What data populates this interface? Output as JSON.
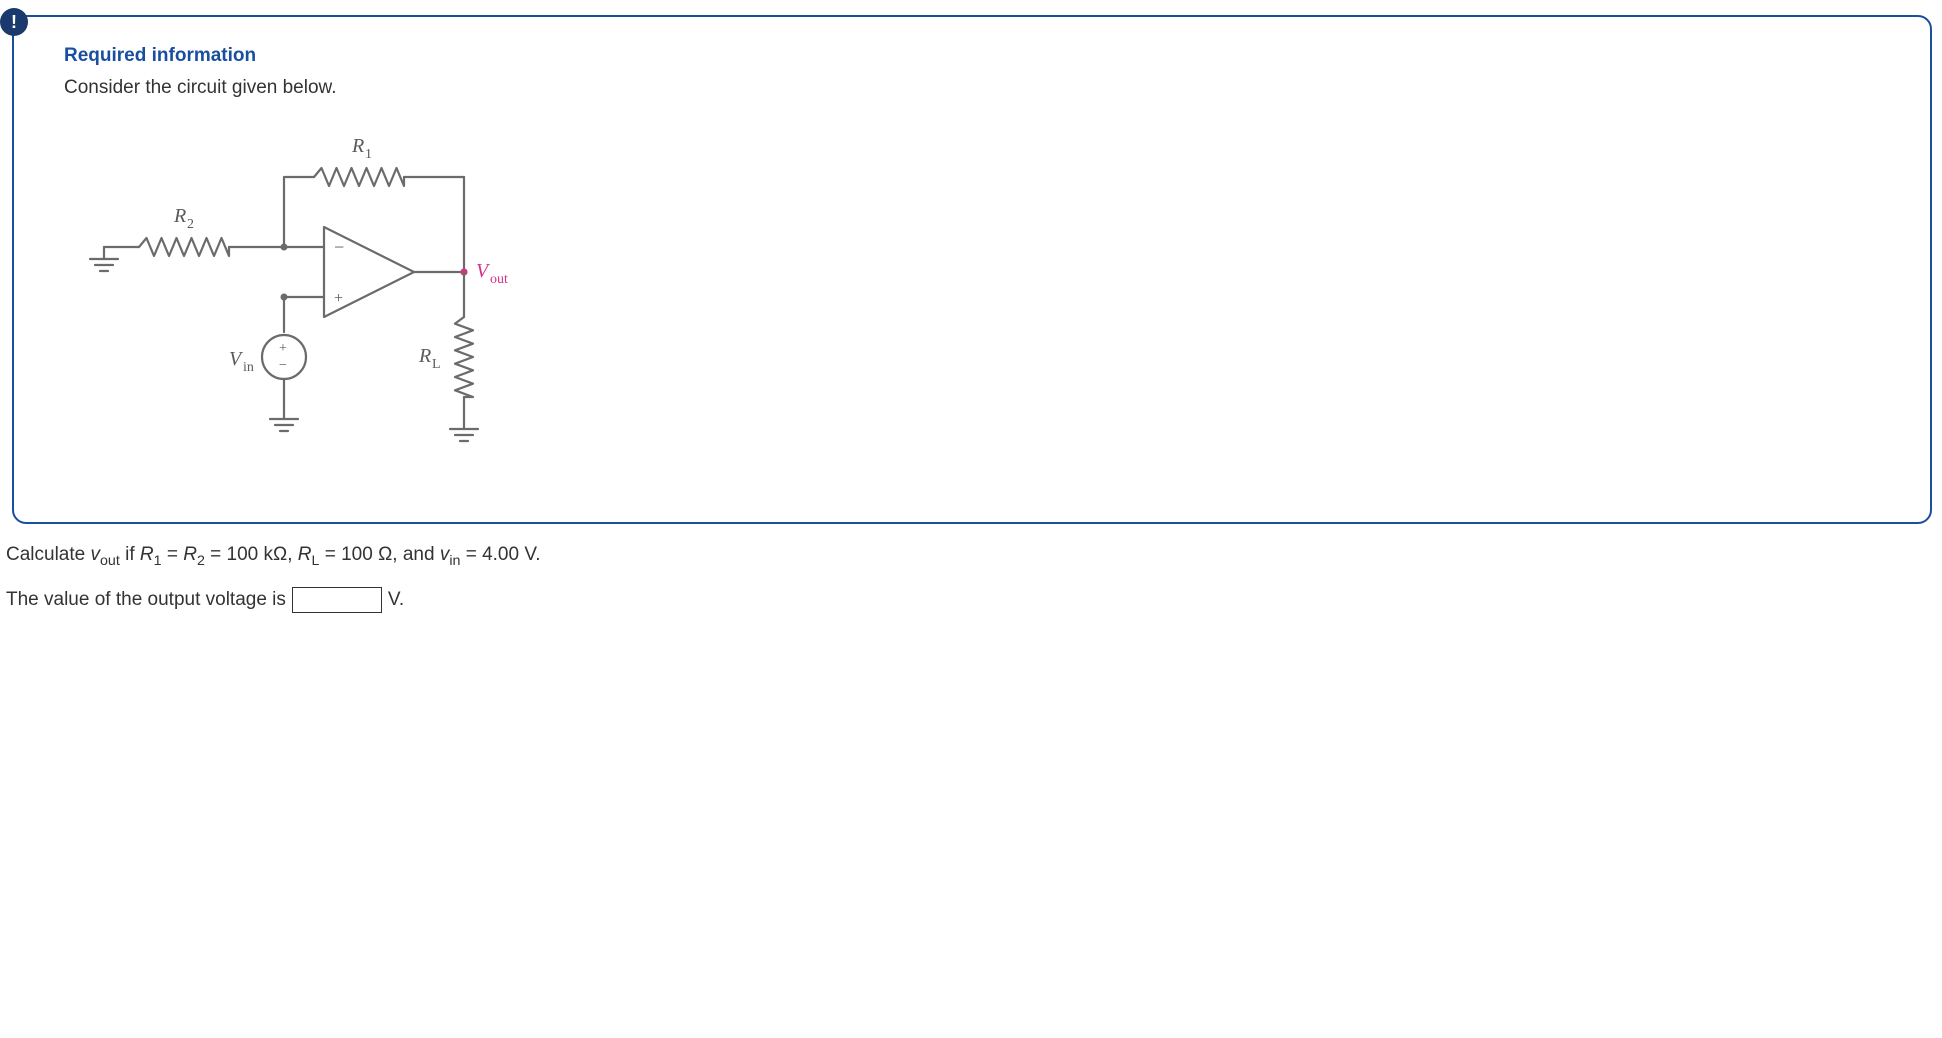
{
  "badge": "!",
  "required_title": "Required information",
  "intro": "Consider the circuit given below.",
  "diagram": {
    "labels": {
      "R1": "R",
      "R1_sub": "1",
      "R2": "R",
      "R2_sub": "2",
      "RL": "R",
      "RL_sub": "L",
      "Vin": "V",
      "Vin_sub": "in",
      "Vout": "V",
      "Vout_sub": "out",
      "plus": "+",
      "minus": "−"
    },
    "colors": {
      "wire": "#6b6b6b",
      "text": "#5a5a5a",
      "vout": "#d63384"
    },
    "stroke_width": 2.2
  },
  "question": {
    "pre": "Calculate ",
    "vout_v": "v",
    "vout_sub": "out",
    "mid1": " if  ",
    "R1": "R",
    "R1_sub": "1",
    "eq": " = ",
    "R2": "R",
    "R2_sub": "2",
    "val1": " = 100 kΩ, ",
    "RL": "R",
    "RL_sub": "L",
    "val2": " = 100 Ω, and ",
    "vin_v": "v",
    "vin_sub": "in",
    "val3": " = 4.00 V."
  },
  "answer": {
    "pre": "The value of the output voltage is ",
    "unit": " V."
  }
}
